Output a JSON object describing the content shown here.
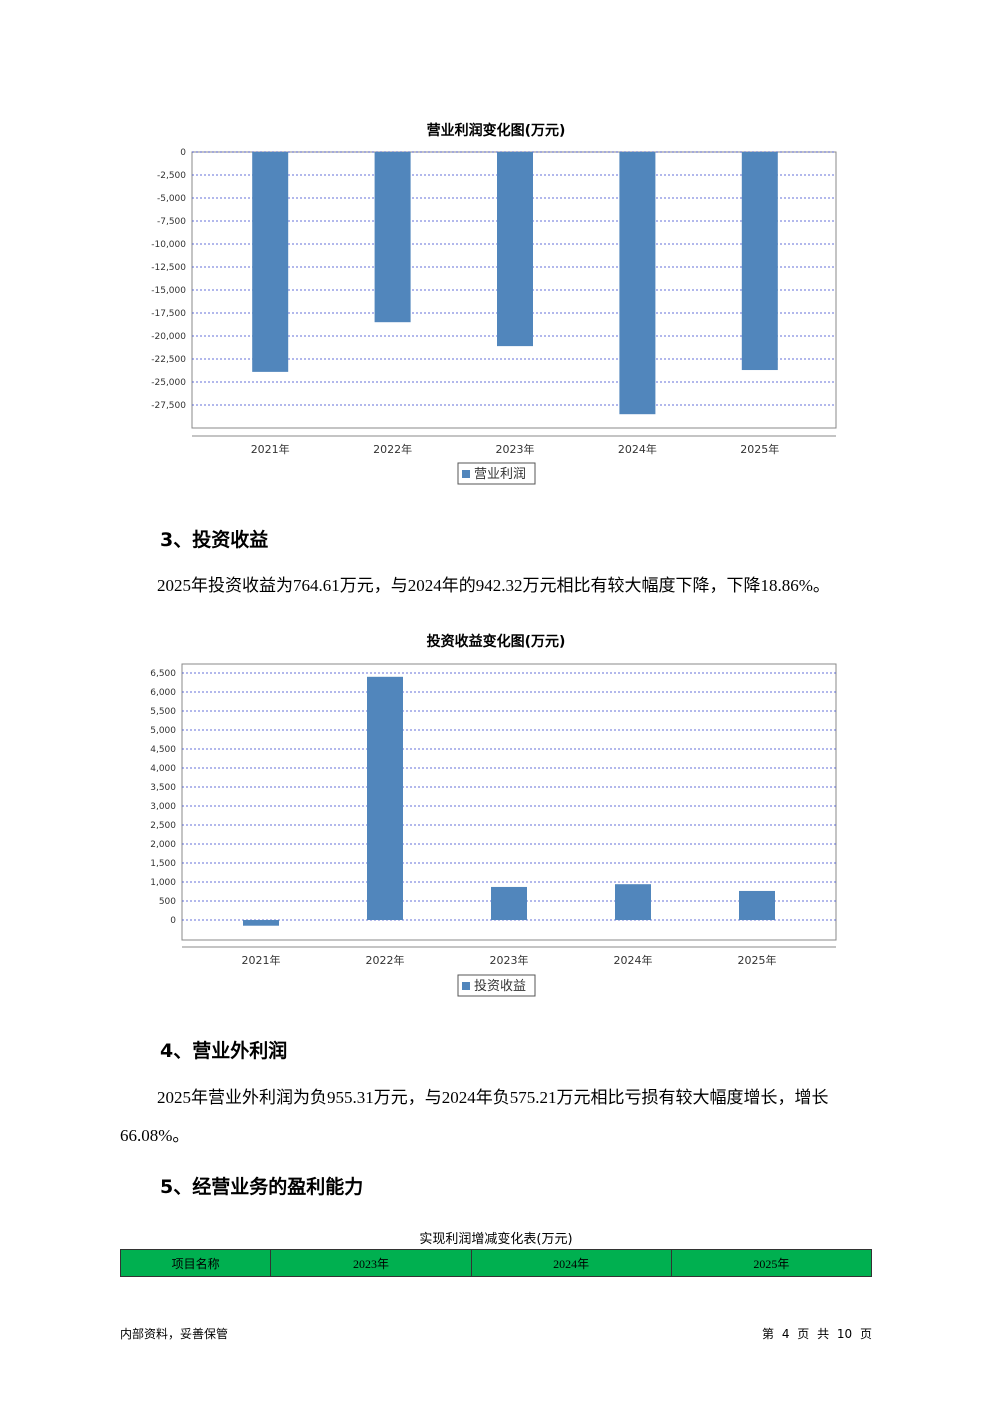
{
  "chart_data": [
    {
      "type": "bar",
      "title": "营业利润变化图(万元)",
      "categories": [
        "2021年",
        "2022年",
        "2023年",
        "2024年",
        "2025年"
      ],
      "series": [
        {
          "name": "营业利润",
          "color": "#5186bc",
          "values": [
            -23900,
            -18500,
            -21100,
            -28500,
            -23700
          ]
        }
      ],
      "ylim": [
        -30000,
        0
      ],
      "yticks": [
        0,
        {
          "value": -2500,
          "label": "-2,500"
        },
        {
          "value": -5000,
          "label": "-5,000"
        },
        {
          "value": -7500,
          "label": "-7,500"
        },
        {
          "value": -10000,
          "label": "-10,000"
        },
        {
          "value": -12500,
          "label": "-12,500"
        },
        {
          "value": -15000,
          "label": "-15,000"
        },
        {
          "value": -17500,
          "label": "-17,500"
        },
        {
          "value": -20000,
          "label": "-20,000"
        },
        {
          "value": -22500,
          "label": "-22,500"
        },
        {
          "value": -25000,
          "label": "-25,000"
        },
        {
          "value": -27500,
          "label": "-27,500"
        }
      ],
      "grid": true,
      "legend": "bottom"
    },
    {
      "type": "bar",
      "title": "投资收益变化图(万元)",
      "categories": [
        "2021年",
        "2022年",
        "2023年",
        "2024年",
        "2025年"
      ],
      "series": [
        {
          "name": "投资收益",
          "color": "#5186bc",
          "values": [
            -150,
            6400,
            870,
            942.32,
            764.61
          ]
        }
      ],
      "ylim": [
        -526,
        6737
      ],
      "yticks": [
        {
          "value": 6500,
          "label": "6,500"
        },
        {
          "value": 6000,
          "label": "6,000"
        },
        {
          "value": 5500,
          "label": "5,500"
        },
        {
          "value": 5000,
          "label": "5,000"
        },
        {
          "value": 4500,
          "label": "4,500"
        },
        {
          "value": 4000,
          "label": "4,000"
        },
        {
          "value": 3500,
          "label": "3,500"
        },
        {
          "value": 3000,
          "label": "3,000"
        },
        {
          "value": 2500,
          "label": "2,500"
        },
        {
          "value": 2000,
          "label": "2,000"
        },
        {
          "value": 1500,
          "label": "1,500"
        },
        {
          "value": 1000,
          "label": "1,000"
        },
        500,
        0
      ],
      "grid": true,
      "legend": "bottom"
    }
  ],
  "sections": [
    {
      "heading": "3、投资收益",
      "paragraph": "2025年投资收益为764.61万元，与2024年的942.32万元相比有较大幅度下降，下降18.86%。"
    },
    {
      "heading": "4、营业外利润",
      "paragraph": "2025年营业外利润为负955.31万元，与2024年负575.21万元相比亏损有较大幅度增长，增长66.08%。"
    },
    {
      "heading": "5、经营业务的盈利能力"
    }
  ],
  "table": {
    "caption": "实现利润增减变化表(万元)",
    "header": [
      "项目名称",
      "2023年",
      "2024年",
      "2025年"
    ]
  },
  "footer": {
    "left": "内部资料，妥善保管",
    "right": "第 4 页 共 10 页"
  }
}
